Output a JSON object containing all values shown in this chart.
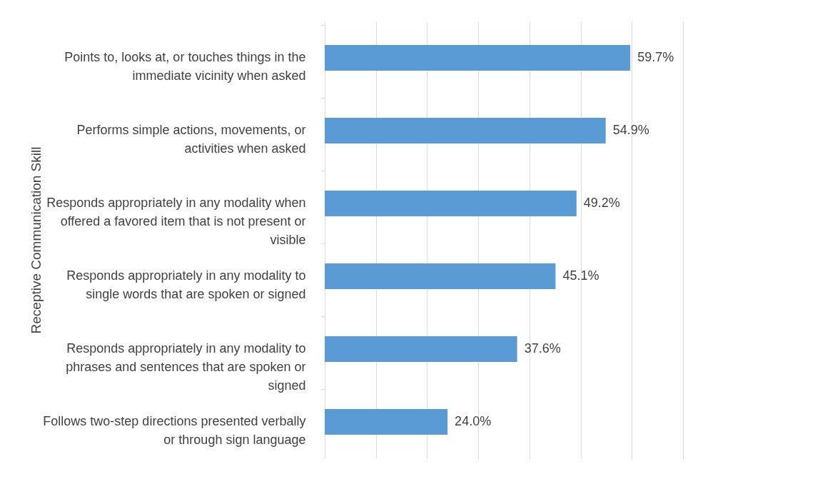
{
  "chart_data": {
    "type": "bar",
    "orientation": "horizontal",
    "ylabel": "Receptive Communication Skill",
    "categories": [
      "Points to, looks at, or touches things in the immediate vicinity when asked",
      "Performs simple actions, movements, or activities when asked",
      "Responds appropriately in any modality when offered a favored item that is not present or visible",
      "Responds appropriately in any modality to single words that are spoken or signed",
      "Responds appropriately in any modality to phrases and sentences that are spoken or signed",
      "Follows two-step directions presented verbally or through sign language"
    ],
    "values": [
      59.7,
      54.9,
      49.2,
      45.1,
      37.6,
      24.0
    ],
    "value_labels": [
      "59.7%",
      "54.9%",
      "49.2%",
      "45.1%",
      "37.6%",
      "24.0%"
    ],
    "color": "#5b9bd5",
    "xlim": [
      0,
      70
    ],
    "xticks": [
      {
        "value": 0,
        "label": null
      },
      {
        "value": 10,
        "label": null
      },
      {
        "value": 20,
        "label": null
      },
      {
        "value": 30,
        "label": null
      },
      {
        "value": 40,
        "label": null
      },
      {
        "value": 50,
        "label": null
      },
      {
        "value": 60,
        "label": null
      },
      {
        "value": 70,
        "label": null
      }
    ],
    "grid": "x",
    "tick_labels": "y"
  }
}
